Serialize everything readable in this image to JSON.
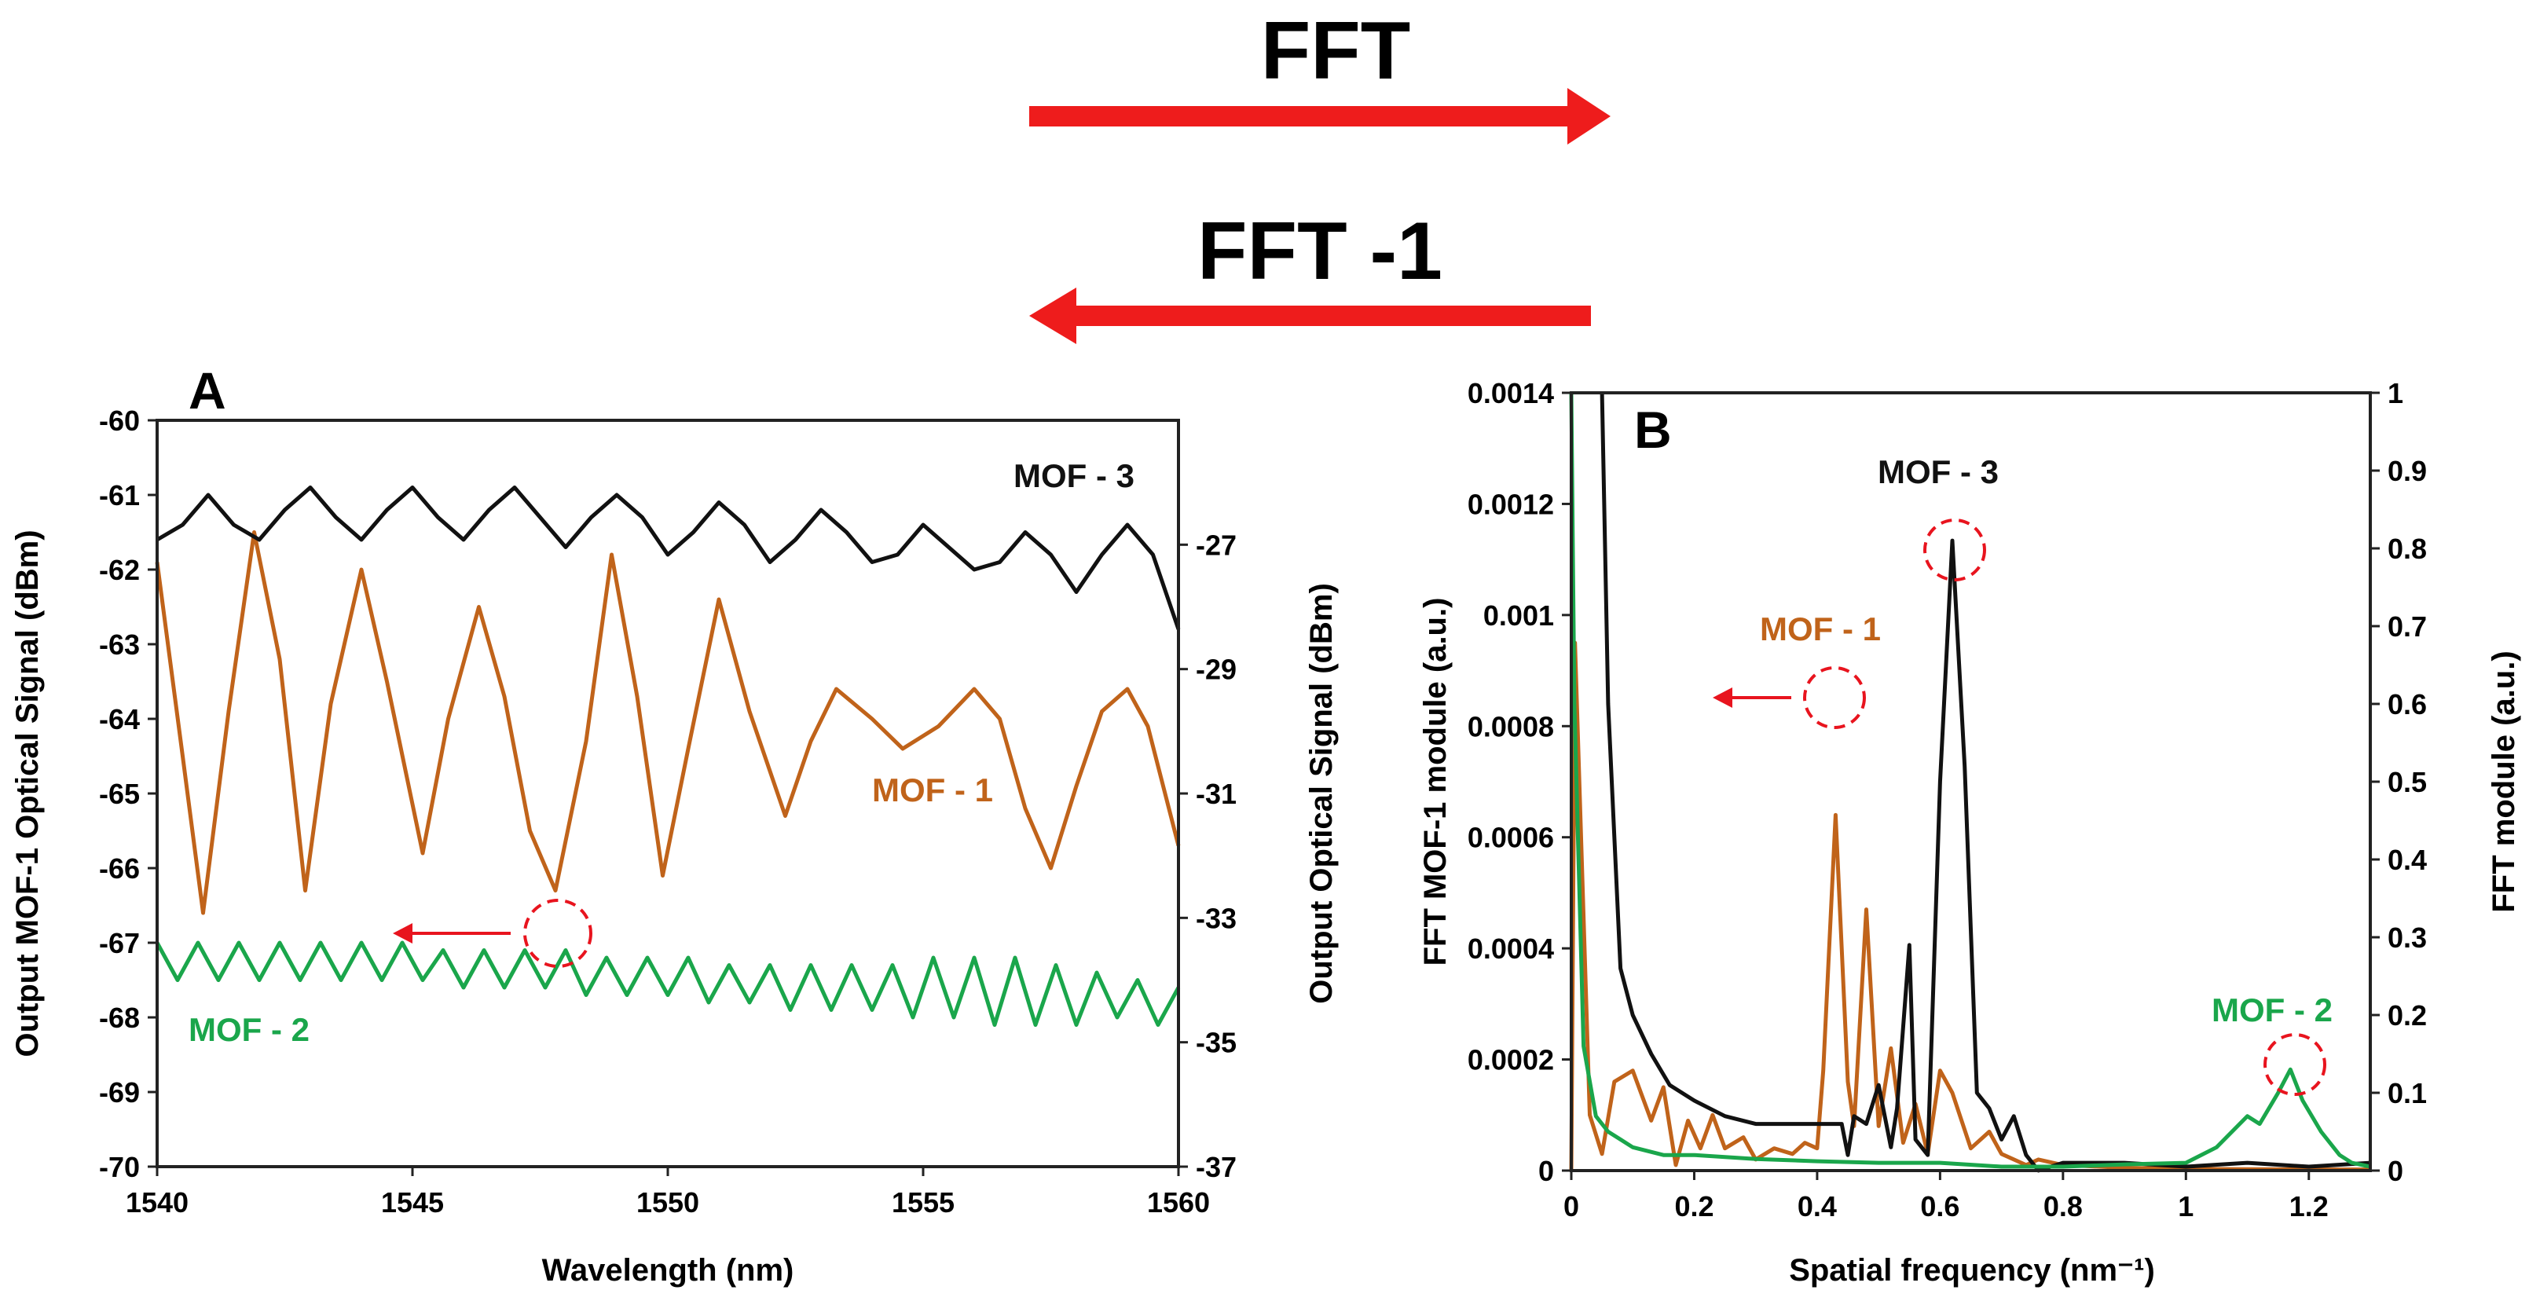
{
  "header": {
    "fft_label": "FFT",
    "ifft_label": "FFT -1",
    "arrow_color": "#ee1c1c"
  },
  "chart_data": [
    {
      "id": "A",
      "type": "line",
      "panel_label": "A",
      "xlabel": "Wavelength (nm)",
      "ylabel": "Output MOF-1 Optical Signal (dBm)",
      "y2label": "Output Optical Signal (dBm)",
      "xlim": [
        1540,
        1560
      ],
      "ylim": [
        -70,
        -60
      ],
      "y2lim": [
        -37,
        -25
      ],
      "xticks": [
        1540,
        1545,
        1550,
        1555,
        1560
      ],
      "yticks": [
        -60,
        -61,
        -62,
        -63,
        -64,
        -65,
        -66,
        -67,
        -68,
        -69,
        -70
      ],
      "y2ticks": [
        -27,
        -29,
        -31,
        -33,
        -35,
        -37
      ],
      "grid": false,
      "series": [
        {
          "name": "MOF - 1",
          "axis": "left",
          "color": "#c0631a",
          "x": [
            1540.0,
            1540.5,
            1540.9,
            1541.4,
            1541.9,
            1542.4,
            1542.9,
            1543.4,
            1544.0,
            1544.5,
            1545.2,
            1545.7,
            1546.3,
            1546.8,
            1547.3,
            1547.8,
            1548.4,
            1548.9,
            1549.4,
            1549.9,
            1550.4,
            1551.0,
            1551.6,
            1552.3,
            1552.8,
            1553.3,
            1554.0,
            1554.6,
            1555.3,
            1556.0,
            1556.5,
            1557.0,
            1557.5,
            1558.0,
            1558.5,
            1559.0,
            1559.4,
            1560.0
          ],
          "values": [
            -61.9,
            -64.5,
            -66.6,
            -63.9,
            -61.5,
            -63.2,
            -66.3,
            -63.8,
            -62.0,
            -63.5,
            -65.8,
            -64.0,
            -62.5,
            -63.7,
            -65.5,
            -66.3,
            -64.3,
            -61.8,
            -63.7,
            -66.1,
            -64.4,
            -62.4,
            -63.9,
            -65.3,
            -64.3,
            -63.6,
            -64.0,
            -64.4,
            -64.1,
            -63.6,
            -64.0,
            -65.2,
            -66.0,
            -64.9,
            -63.9,
            -63.6,
            -64.1,
            -65.7
          ]
        },
        {
          "name": "MOF - 3",
          "axis": "left",
          "color": "#111111",
          "x": [
            1540.0,
            1540.5,
            1541.0,
            1541.5,
            1542.0,
            1542.5,
            1543.0,
            1543.5,
            1544.0,
            1544.5,
            1545.0,
            1545.5,
            1546.0,
            1546.5,
            1547.0,
            1547.5,
            1548.0,
            1548.5,
            1549.0,
            1549.5,
            1550.0,
            1550.5,
            1551.0,
            1551.5,
            1552.0,
            1552.5,
            1553.0,
            1553.5,
            1554.0,
            1554.5,
            1555.0,
            1555.5,
            1556.0,
            1556.5,
            1557.0,
            1557.5,
            1558.0,
            1558.5,
            1559.0,
            1559.5,
            1560.0
          ],
          "values": [
            -61.6,
            -61.4,
            -61.0,
            -61.4,
            -61.6,
            -61.2,
            -60.9,
            -61.3,
            -61.6,
            -61.2,
            -60.9,
            -61.3,
            -61.6,
            -61.2,
            -60.9,
            -61.3,
            -61.7,
            -61.3,
            -61.0,
            -61.3,
            -61.8,
            -61.5,
            -61.1,
            -61.4,
            -61.9,
            -61.6,
            -61.2,
            -61.5,
            -61.9,
            -61.8,
            -61.4,
            -61.7,
            -62.0,
            -61.9,
            -61.5,
            -61.8,
            -62.3,
            -61.8,
            -61.4,
            -61.8,
            -62.8
          ]
        },
        {
          "name": "MOF - 2",
          "axis": "left",
          "color": "#1aa64b",
          "x": [
            1540.0,
            1540.4,
            1540.8,
            1541.2,
            1541.6,
            1542.0,
            1542.4,
            1542.8,
            1543.2,
            1543.6,
            1544.0,
            1544.4,
            1544.8,
            1545.2,
            1545.6,
            1546.0,
            1546.4,
            1546.8,
            1547.2,
            1547.6,
            1548.0,
            1548.4,
            1548.8,
            1549.2,
            1549.6,
            1550.0,
            1550.4,
            1550.8,
            1551.2,
            1551.6,
            1552.0,
            1552.4,
            1552.8,
            1553.2,
            1553.6,
            1554.0,
            1554.4,
            1554.8,
            1555.2,
            1555.6,
            1556.0,
            1556.4,
            1556.8,
            1557.2,
            1557.6,
            1558.0,
            1558.4,
            1558.8,
            1559.2,
            1559.6,
            1560.0
          ],
          "values": [
            -67.0,
            -67.5,
            -67.0,
            -67.5,
            -67.0,
            -67.5,
            -67.0,
            -67.5,
            -67.0,
            -67.5,
            -67.0,
            -67.5,
            -67.0,
            -67.5,
            -67.1,
            -67.6,
            -67.1,
            -67.6,
            -67.1,
            -67.6,
            -67.1,
            -67.7,
            -67.2,
            -67.7,
            -67.2,
            -67.7,
            -67.2,
            -67.8,
            -67.3,
            -67.8,
            -67.3,
            -67.9,
            -67.3,
            -67.9,
            -67.3,
            -67.9,
            -67.3,
            -68.0,
            -67.2,
            -68.0,
            -67.2,
            -68.1,
            -67.2,
            -68.1,
            -67.3,
            -68.1,
            -67.4,
            -68.0,
            -67.5,
            -68.1,
            -67.6
          ]
        }
      ],
      "annotations": [
        {
          "text": "MOF - 3",
          "color": "#111111"
        },
        {
          "text": "MOF - 1",
          "color": "#c0631a"
        },
        {
          "text": "MOF - 2",
          "color": "#1aa64b"
        }
      ]
    },
    {
      "id": "B",
      "type": "line",
      "panel_label": "B",
      "xlabel": "Spatial frequency (nm⁻¹)",
      "ylabel": "FFT MOF-1 module (a.u.)",
      "y2label": "FFT module (a.u.)",
      "xlim": [
        0,
        1.3
      ],
      "ylim": [
        0,
        0.0014
      ],
      "y2lim": [
        0,
        1
      ],
      "xticks": [
        "0",
        "0.2",
        "0.4",
        "0.6",
        "0.8",
        "1",
        "1.2"
      ],
      "yticks": [
        "0",
        "0.0002",
        "0.0004",
        "0.0006",
        "0.0008",
        "0.001",
        "0.0012",
        "0.0014"
      ],
      "y2ticks": [
        "0",
        "0.1",
        "0.2",
        "0.3",
        "0.4",
        "0.5",
        "0.6",
        "0.7",
        "0.8",
        "0.9",
        "1"
      ],
      "grid": false,
      "series": [
        {
          "name": "MOF - 1",
          "axis": "left",
          "color": "#c0631a",
          "x": [
            0.0,
            0.006,
            0.03,
            0.05,
            0.07,
            0.1,
            0.13,
            0.15,
            0.17,
            0.19,
            0.21,
            0.23,
            0.25,
            0.28,
            0.3,
            0.33,
            0.36,
            0.38,
            0.4,
            0.41,
            0.43,
            0.45,
            0.46,
            0.48,
            0.5,
            0.52,
            0.54,
            0.56,
            0.58,
            0.6,
            0.62,
            0.65,
            0.68,
            0.7,
            0.74,
            0.76,
            0.8,
            0.9,
            1.0,
            1.2,
            1.3
          ],
          "values": [
            0.0,
            0.00095,
            0.0001,
            3e-05,
            0.00016,
            0.00018,
            9e-05,
            0.00015,
            1e-05,
            9e-05,
            4e-05,
            0.0001,
            4e-05,
            6e-05,
            2e-05,
            4e-05,
            3e-05,
            5e-05,
            4e-05,
            0.00018,
            0.00064,
            0.00016,
            8e-05,
            0.00047,
            8e-05,
            0.00022,
            5e-05,
            0.00012,
            3e-05,
            0.00018,
            0.00014,
            4e-05,
            7e-05,
            3e-05,
            1e-05,
            2e-05,
            1e-05,
            5e-06,
            3e-06,
            2e-06,
            2e-06
          ]
        },
        {
          "name": "MOF - 3",
          "axis": "right",
          "color": "#111111",
          "x": [
            0.05,
            0.06,
            0.08,
            0.1,
            0.13,
            0.16,
            0.2,
            0.25,
            0.3,
            0.35,
            0.4,
            0.44,
            0.45,
            0.46,
            0.48,
            0.5,
            0.52,
            0.53,
            0.55,
            0.56,
            0.58,
            0.6,
            0.62,
            0.64,
            0.66,
            0.68,
            0.7,
            0.72,
            0.74,
            0.76,
            0.8,
            0.9,
            1.0,
            1.1,
            1.2,
            1.3
          ],
          "values": [
            1.0,
            0.6,
            0.26,
            0.2,
            0.15,
            0.11,
            0.09,
            0.07,
            0.06,
            0.06,
            0.06,
            0.06,
            0.02,
            0.07,
            0.06,
            0.11,
            0.03,
            0.08,
            0.29,
            0.04,
            0.02,
            0.5,
            0.81,
            0.52,
            0.1,
            0.08,
            0.04,
            0.07,
            0.02,
            0.0,
            0.01,
            0.01,
            0.005,
            0.01,
            0.005,
            0.01
          ]
        },
        {
          "name": "MOF - 2",
          "axis": "right",
          "color": "#1aa64b",
          "x": [
            0.0,
            0.005,
            0.02,
            0.04,
            0.06,
            0.08,
            0.1,
            0.15,
            0.2,
            0.3,
            0.4,
            0.5,
            0.6,
            0.7,
            0.8,
            0.9,
            1.0,
            1.05,
            1.1,
            1.12,
            1.15,
            1.17,
            1.19,
            1.22,
            1.25,
            1.27,
            1.3
          ],
          "values": [
            1.0,
            0.6,
            0.16,
            0.07,
            0.05,
            0.04,
            0.03,
            0.02,
            0.02,
            0.015,
            0.012,
            0.01,
            0.01,
            0.005,
            0.005,
            0.008,
            0.01,
            0.03,
            0.07,
            0.06,
            0.1,
            0.13,
            0.09,
            0.05,
            0.02,
            0.01,
            0.005
          ]
        }
      ],
      "annotations": [
        {
          "text": "MOF - 3",
          "color": "#111111"
        },
        {
          "text": "MOF - 1",
          "color": "#c0631a"
        },
        {
          "text": "MOF - 2",
          "color": "#1aa64b"
        }
      ]
    }
  ]
}
